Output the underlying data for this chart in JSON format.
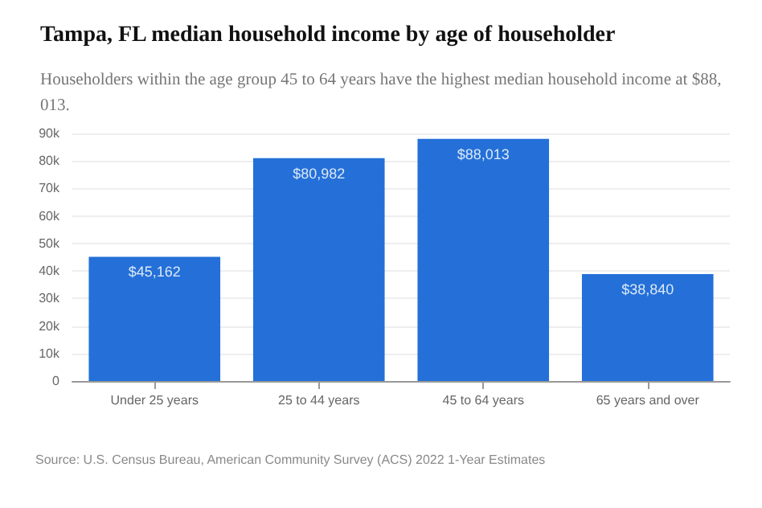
{
  "chart_data": {
    "type": "bar",
    "title": "Tampa, FL median household income by age of householder",
    "subtitle": "Householders within the age group 45 to 64 years have the highest median household income at $88,013.",
    "categories": [
      "Under 25 years",
      "25 to 44 years",
      "45 to 64 years",
      "65 years and over"
    ],
    "values": [
      45162,
      80982,
      88013,
      38840
    ],
    "value_labels": [
      "$45,162",
      "$80,982",
      "$88,013",
      "$38,840"
    ],
    "color": "#2470d8",
    "ylim": [
      0,
      90000
    ],
    "yticks": [
      {
        "value": 0,
        "label": "0"
      },
      {
        "value": 10000,
        "label": "10k"
      },
      {
        "value": 20000,
        "label": "20k"
      },
      {
        "value": 30000,
        "label": "30k"
      },
      {
        "value": 40000,
        "label": "40k"
      },
      {
        "value": 50000,
        "label": "50k"
      },
      {
        "value": 60000,
        "label": "60k"
      },
      {
        "value": 70000,
        "label": "70k"
      },
      {
        "value": 80000,
        "label": "80k"
      },
      {
        "value": 90000,
        "label": "90k"
      }
    ],
    "grid": "y",
    "annotations": [
      "Source: U.S. Census Bureau, American Community Survey (ACS) 2022 1-Year Estimates"
    ]
  }
}
